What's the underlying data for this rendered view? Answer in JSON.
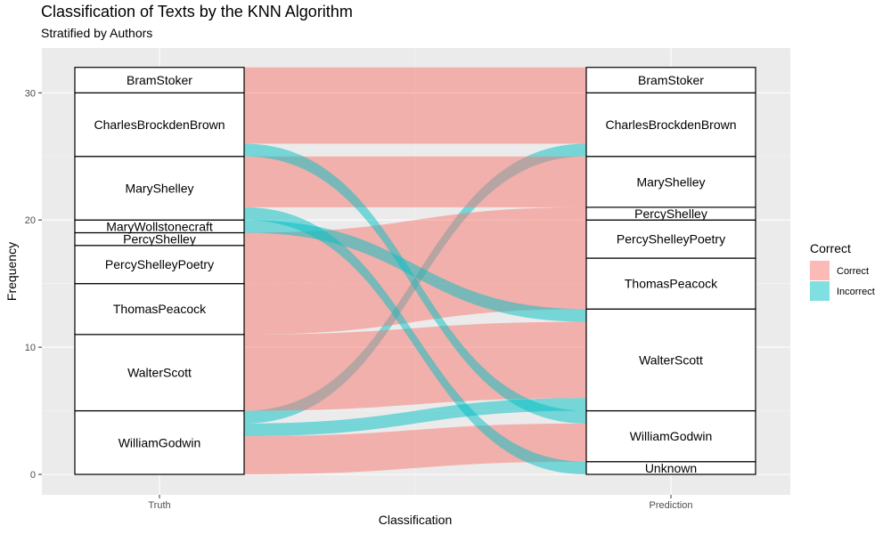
{
  "chart_data": {
    "type": "alluvial",
    "title": "Classification of Texts by the KNN Algorithm",
    "subtitle": "Stratified by Authors",
    "xlabel": "Classification",
    "ylabel": "Frequency",
    "axes": [
      "Truth",
      "Prediction"
    ],
    "ylim": [
      0,
      32
    ],
    "yticks": [
      0,
      10,
      20,
      30
    ],
    "grid": true,
    "legend": {
      "title": "Correct",
      "placement": "right",
      "entries": [
        {
          "label": "Correct",
          "color": "#F8766D"
        },
        {
          "label": "Incorrect",
          "color": "#00BFC4"
        }
      ]
    },
    "truth_strata": [
      {
        "label": "WilliamGodwin",
        "value": 5
      },
      {
        "label": "WalterScott",
        "value": 6
      },
      {
        "label": "ThomasPeacock",
        "value": 4
      },
      {
        "label": "PercyShelleyPoetry",
        "value": 3
      },
      {
        "label": "PercyShelley",
        "value": 1
      },
      {
        "label": "MaryWollstonecraft",
        "value": 1
      },
      {
        "label": "MaryShelley",
        "value": 5
      },
      {
        "label": "CharlesBrockdenBrown",
        "value": 5
      },
      {
        "label": "BramStoker",
        "value": 2
      }
    ],
    "prediction_strata": [
      {
        "label": "Unknown",
        "value": 1
      },
      {
        "label": "WilliamGodwin",
        "value": 4
      },
      {
        "label": "WalterScott",
        "value": 8
      },
      {
        "label": "ThomasPeacock",
        "value": 4
      },
      {
        "label": "PercyShelleyPoetry",
        "value": 3
      },
      {
        "label": "PercyShelley",
        "value": 1
      },
      {
        "label": "MaryShelley",
        "value": 4
      },
      {
        "label": "CharlesBrockdenBrown",
        "value": 5
      },
      {
        "label": "BramStoker",
        "value": 2
      }
    ],
    "flows": [
      {
        "truth": "WilliamGodwin",
        "prediction": "WilliamGodwin",
        "count": 3,
        "correct": "Correct"
      },
      {
        "truth": "WilliamGodwin",
        "prediction": "WalterScott",
        "count": 1,
        "correct": "Incorrect"
      },
      {
        "truth": "WilliamGodwin",
        "prediction": "CharlesBrockdenBrown",
        "count": 1,
        "correct": "Incorrect"
      },
      {
        "truth": "WalterScott",
        "prediction": "WalterScott",
        "count": 6,
        "correct": "Correct"
      },
      {
        "truth": "ThomasPeacock",
        "prediction": "ThomasPeacock",
        "count": 4,
        "correct": "Correct"
      },
      {
        "truth": "PercyShelleyPoetry",
        "prediction": "PercyShelleyPoetry",
        "count": 3,
        "correct": "Correct"
      },
      {
        "truth": "PercyShelley",
        "prediction": "PercyShelley",
        "count": 1,
        "correct": "Correct"
      },
      {
        "truth": "MaryWollstonecraft",
        "prediction": "WalterScott",
        "count": 1,
        "correct": "Incorrect"
      },
      {
        "truth": "MaryShelley",
        "prediction": "Unknown",
        "count": 1,
        "correct": "Incorrect"
      },
      {
        "truth": "MaryShelley",
        "prediction": "MaryShelley",
        "count": 4,
        "correct": "Correct"
      },
      {
        "truth": "CharlesBrockdenBrown",
        "prediction": "WilliamGodwin",
        "count": 1,
        "correct": "Incorrect"
      },
      {
        "truth": "CharlesBrockdenBrown",
        "prediction": "CharlesBrockdenBrown",
        "count": 4,
        "correct": "Correct"
      },
      {
        "truth": "BramStoker",
        "prediction": "BramStoker",
        "count": 2,
        "correct": "Correct"
      }
    ]
  }
}
